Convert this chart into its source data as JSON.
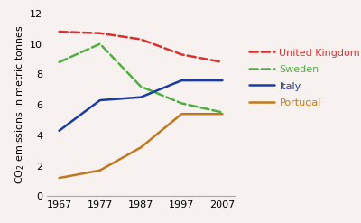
{
  "years": [
    1967,
    1977,
    1987,
    1997,
    2007
  ],
  "series": {
    "United Kingdom": [
      10.8,
      10.7,
      10.3,
      9.3,
      8.8
    ],
    "Sweden": [
      8.8,
      10.0,
      7.2,
      6.1,
      5.5
    ],
    "Italy": [
      4.3,
      6.3,
      6.5,
      7.6,
      7.6
    ],
    "Portugal": [
      1.2,
      1.7,
      3.2,
      5.4,
      5.4
    ]
  },
  "colors": {
    "United Kingdom": "#d93030",
    "Sweden": "#4db040",
    "Italy": "#1a3ba0",
    "Portugal": "#c07820"
  },
  "linestyles": {
    "United Kingdom": "--",
    "Sweden": "--",
    "Italy": "-",
    "Portugal": "-"
  },
  "ylabel": "CO$_2$ emissions in metric tonnes",
  "ylim": [
    0,
    12
  ],
  "yticks": [
    0,
    2,
    4,
    6,
    8,
    10,
    12
  ],
  "xlim": [
    1964,
    2010
  ],
  "xticks": [
    1967,
    1977,
    1987,
    1997,
    2007
  ],
  "background_color": "#f7f2ef",
  "linewidth": 1.8,
  "legend_fontsize": 8.0,
  "ylabel_fontsize": 8.0,
  "tick_fontsize": 8.0
}
